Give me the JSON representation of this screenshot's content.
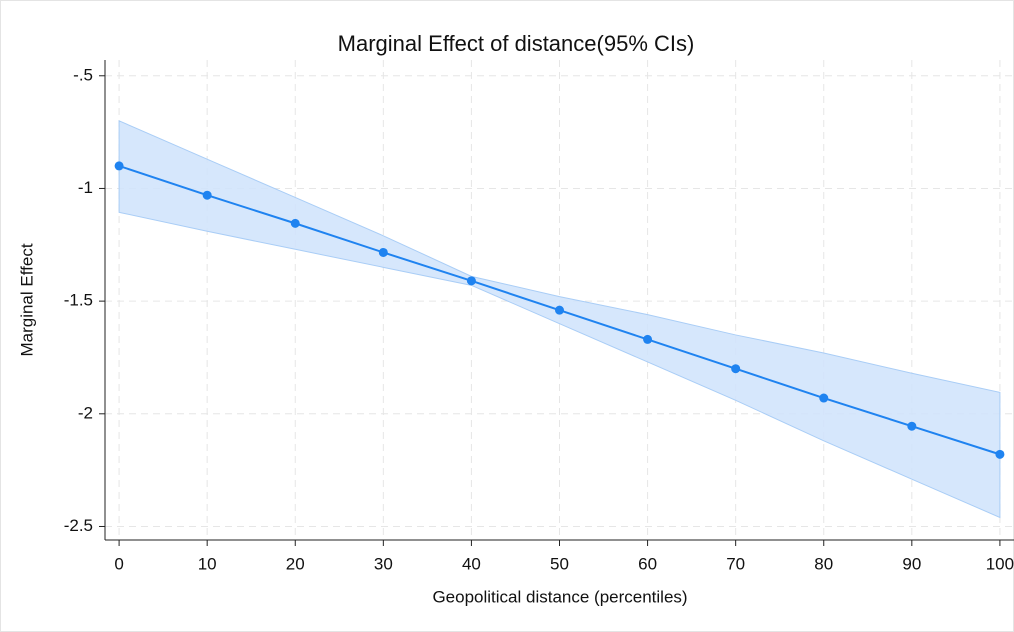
{
  "chart_data": {
    "type": "line-ci",
    "title": "Marginal Effect of distance(95% CIs)",
    "x_label": "Geopolitical distance (percentiles)",
    "y_label": "Marginal Effect",
    "x": [
      0,
      10,
      20,
      30,
      40,
      50,
      60,
      70,
      80,
      90,
      100
    ],
    "values": [
      -0.9,
      -1.03,
      -1.155,
      -1.284,
      -1.41,
      -1.54,
      -1.67,
      -1.8,
      -1.93,
      -2.055,
      -2.18
    ],
    "upper": [
      -0.7,
      -0.87,
      -1.04,
      -1.21,
      -1.39,
      -1.48,
      -1.56,
      -1.65,
      -1.73,
      -1.82,
      -1.905
    ],
    "lower": [
      -1.106,
      -1.19,
      -1.27,
      -1.35,
      -1.43,
      -1.6,
      -1.77,
      -1.94,
      -2.12,
      -2.29,
      -2.46
    ],
    "color": "#1f83f0",
    "ci_color": "#cfe3fb",
    "xlim": [
      -1.6,
      101.6
    ],
    "ylim": [
      -2.56,
      -0.43
    ],
    "xticks": [
      0,
      10,
      20,
      30,
      40,
      50,
      60,
      70,
      80,
      90,
      100
    ],
    "yticks": [
      {
        "value": -0.5,
        "label": "-.5"
      },
      -1,
      -1.5,
      -2,
      -2.5
    ],
    "grid": true
  }
}
